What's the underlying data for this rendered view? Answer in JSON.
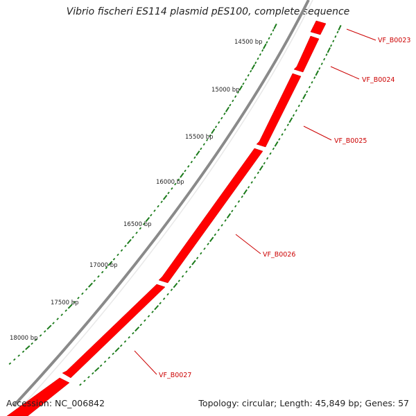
{
  "header": {
    "title": "Vibrio fischeri ES114 plasmid pES100, complete sequence"
  },
  "footer": {
    "accession": "Accession: NC_006842",
    "summary": "Topology: circular; Length: 45,849 bp; Genes: 57"
  },
  "scale_labels": [
    "14500 bp",
    "15000 bp",
    "15500 bp",
    "16000 bp",
    "16500 bp",
    "17000 bp",
    "17500 bp",
    "18000 bp"
  ],
  "genes": [
    "VF_B0023",
    "VF_B0024",
    "VF_B0025",
    "VF_B0026",
    "VF_B0027"
  ],
  "colors": {
    "gene": "#ff0000",
    "gene_label": "#cc0000",
    "backbone": "#8a8a8a",
    "ticks": "#1a7a1a"
  }
}
